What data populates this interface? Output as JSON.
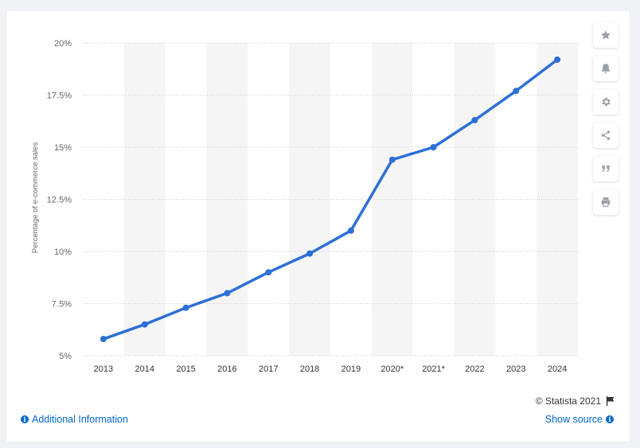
{
  "chart_data": {
    "type": "line",
    "categories": [
      "2013",
      "2014",
      "2015",
      "2016",
      "2017",
      "2018",
      "2019",
      "2020*",
      "2021*",
      "2022",
      "2023",
      "2024"
    ],
    "values": [
      5.8,
      6.5,
      7.3,
      8.0,
      9.0,
      9.9,
      11.0,
      14.4,
      15.0,
      16.3,
      17.7,
      19.2
    ],
    "ylabel": "Percentage of e-commerce sales",
    "ylim": [
      5,
      20
    ],
    "yticks": [
      5,
      7.5,
      10,
      12.5,
      15,
      17.5,
      20
    ],
    "ytick_labels": [
      "5%",
      "7.5%",
      "10%",
      "12.5%",
      "15%",
      "17.5%",
      "20%"
    ],
    "grid": true,
    "line_color": "#2e6fd6",
    "band_color": "#f5f5f5"
  },
  "sidebar": {
    "icons": [
      "star-icon",
      "bell-icon",
      "gear-icon",
      "share-icon",
      "quote-icon",
      "print-icon"
    ]
  },
  "footer": {
    "copyright": "© Statista 2021",
    "additional_info": "Additional Information",
    "show_source": "Show source"
  }
}
